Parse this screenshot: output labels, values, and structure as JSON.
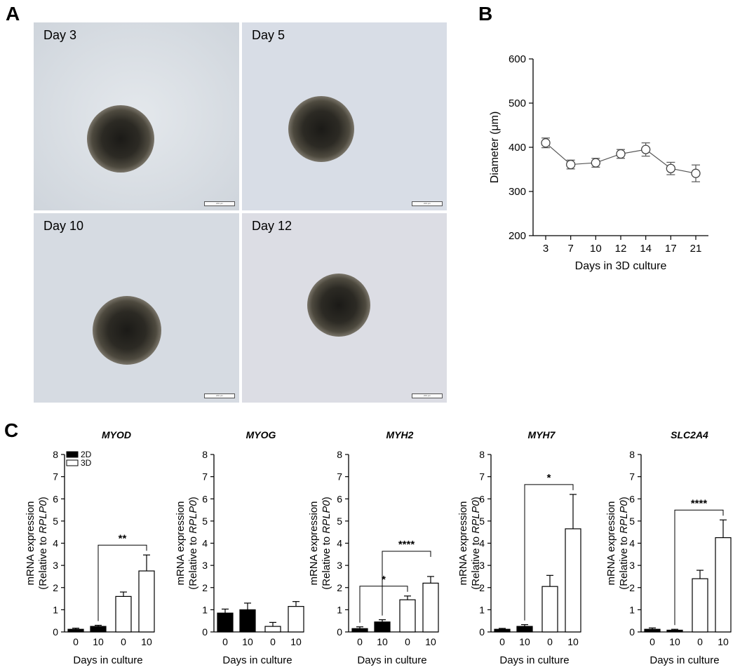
{
  "panels": {
    "A": "A",
    "B": "B",
    "C": "C"
  },
  "photos": [
    {
      "label": "Day 3",
      "scale": "200 μm"
    },
    {
      "label": "Day 5",
      "scale": "200 μm"
    },
    {
      "label": "Day 10",
      "scale": "200 μm"
    },
    {
      "label": "Day 12",
      "scale": "200 μm"
    }
  ],
  "chart_data": [
    {
      "type": "line",
      "panel": "B",
      "x": [
        3,
        7,
        10,
        12,
        14,
        17,
        21
      ],
      "xticks": [
        "3",
        "7",
        "10",
        "12",
        "14",
        "17",
        "21"
      ],
      "series": [
        {
          "values": [
            410,
            361,
            365,
            385,
            395,
            352,
            341
          ],
          "error": [
            11,
            10,
            10,
            10,
            15,
            14,
            19
          ]
        }
      ],
      "xlabel": "Days in 3D culture",
      "ylabel": "Diameter (μm)",
      "ylim": [
        200,
        600
      ],
      "yticks": [
        200,
        300,
        400,
        500,
        600
      ],
      "marker": "open-circle"
    },
    {
      "type": "bar",
      "panel": "C",
      "title": "MYOD",
      "categories": [
        "0",
        "10",
        "0",
        "10"
      ],
      "groups": [
        "2D",
        "2D",
        "3D",
        "3D"
      ],
      "values": [
        0.12,
        0.25,
        1.6,
        2.75
      ],
      "error": [
        0.05,
        0.05,
        0.2,
        0.72
      ],
      "legend": [
        "2D",
        "3D"
      ],
      "significance": [
        {
          "from": 1,
          "to": 3,
          "label": "**"
        }
      ],
      "xlabel": "Days in culture",
      "ylabel": [
        "mRNA expression",
        "(Relative to ",
        "RPLP0",
        ")"
      ],
      "ylim": [
        0,
        8
      ],
      "yticks": [
        0,
        1,
        2,
        3,
        4,
        5,
        6,
        7,
        8
      ]
    },
    {
      "type": "bar",
      "panel": "C",
      "title": "MYOG",
      "categories": [
        "0",
        "10",
        "0",
        "10"
      ],
      "groups": [
        "2D",
        "2D",
        "3D",
        "3D"
      ],
      "values": [
        0.85,
        1.0,
        0.25,
        1.15
      ],
      "error": [
        0.18,
        0.3,
        0.18,
        0.22
      ],
      "significance": [],
      "xlabel": "Days in culture",
      "ylabel": [
        "mRNA expression",
        "(Relative to ",
        "RPLP0",
        ")"
      ],
      "ylim": [
        0,
        8
      ],
      "yticks": [
        0,
        1,
        2,
        3,
        4,
        5,
        6,
        7,
        8
      ]
    },
    {
      "type": "bar",
      "panel": "C",
      "title": "MYH2",
      "categories": [
        "0",
        "10",
        "0",
        "10"
      ],
      "groups": [
        "2D",
        "2D",
        "3D",
        "3D"
      ],
      "values": [
        0.15,
        0.45,
        1.45,
        2.2
      ],
      "error": [
        0.08,
        0.1,
        0.17,
        0.3
      ],
      "significance": [
        {
          "from": 0,
          "to": 2,
          "label": "*"
        },
        {
          "from": 1,
          "to": 3,
          "label": "****"
        }
      ],
      "xlabel": "Days in culture",
      "ylabel": [
        "mRNA expression",
        "(Relative to ",
        "RPLP0",
        ")"
      ],
      "ylim": [
        0,
        8
      ],
      "yticks": [
        0,
        1,
        2,
        3,
        4,
        5,
        6,
        7,
        8
      ]
    },
    {
      "type": "bar",
      "panel": "C",
      "title": "MYH7",
      "categories": [
        "0",
        "10",
        "0",
        "10"
      ],
      "groups": [
        "2D",
        "2D",
        "3D",
        "3D"
      ],
      "values": [
        0.12,
        0.25,
        2.05,
        4.65
      ],
      "error": [
        0.04,
        0.08,
        0.5,
        1.55
      ],
      "significance": [
        {
          "from": 1,
          "to": 3,
          "label": "*"
        }
      ],
      "xlabel": "Days in culture",
      "ylabel": [
        "mRNA expression",
        "(Relative to ",
        "RPLP0",
        ")"
      ],
      "ylim": [
        0,
        8
      ],
      "yticks": [
        0,
        1,
        2,
        3,
        4,
        5,
        6,
        7,
        8
      ]
    },
    {
      "type": "bar",
      "panel": "C",
      "title": "SLC2A4",
      "categories": [
        "0",
        "10",
        "0",
        "10"
      ],
      "groups": [
        "2D",
        "2D",
        "3D",
        "3D"
      ],
      "values": [
        0.12,
        0.08,
        2.4,
        4.25
      ],
      "error": [
        0.06,
        0.04,
        0.38,
        0.8
      ],
      "significance": [
        {
          "from": 1,
          "to": 3,
          "label": "****"
        }
      ],
      "xlabel": "Days in culture",
      "ylabel": [
        "mRNA expression",
        "(Relative to ",
        "RPLP0",
        ")"
      ],
      "ylim": [
        0,
        8
      ],
      "yticks": [
        0,
        1,
        2,
        3,
        4,
        5,
        6,
        7,
        8
      ]
    }
  ]
}
